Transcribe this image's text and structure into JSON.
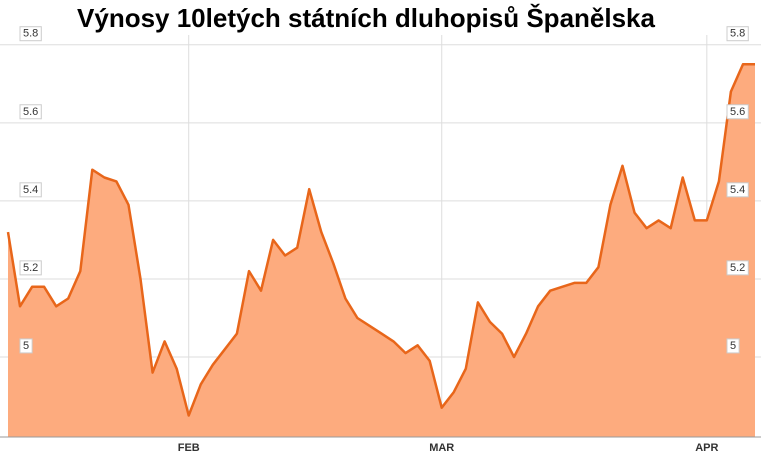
{
  "chart_data": {
    "type": "area",
    "title": "Výnosy 10letých státních dluhopisů Španělska",
    "categories": [
      null,
      null,
      null,
      null,
      null,
      null,
      null,
      null,
      null,
      null,
      null,
      null,
      null,
      null,
      null,
      "FEB",
      null,
      null,
      null,
      null,
      null,
      null,
      null,
      null,
      null,
      null,
      null,
      null,
      null,
      null,
      null,
      null,
      null,
      null,
      null,
      null,
      "MAR",
      null,
      null,
      null,
      null,
      null,
      null,
      null,
      null,
      null,
      null,
      null,
      null,
      null,
      null,
      null,
      null,
      null,
      null,
      null,
      null,
      null,
      "APR",
      null,
      null,
      null,
      null
    ],
    "values": [
      5.32,
      5.13,
      5.18,
      5.18,
      5.13,
      5.15,
      5.22,
      5.48,
      5.46,
      5.45,
      5.39,
      5.2,
      4.96,
      5.04,
      4.97,
      4.85,
      4.93,
      4.98,
      5.02,
      5.06,
      5.22,
      5.17,
      5.3,
      5.26,
      5.28,
      5.43,
      5.32,
      5.24,
      5.15,
      5.1,
      5.08,
      5.06,
      5.04,
      5.01,
      5.03,
      4.99,
      4.87,
      4.91,
      4.97,
      5.14,
      5.09,
      5.06,
      5.0,
      5.06,
      5.13,
      5.17,
      5.18,
      5.19,
      5.19,
      5.23,
      5.39,
      5.49,
      5.37,
      5.33,
      5.35,
      5.33,
      5.46,
      5.35,
      5.35,
      5.45,
      5.68,
      5.75,
      5.75
    ],
    "color": "#e8661a",
    "fill": "#fdab7e",
    "ylim": [
      4.795,
      5.82
    ],
    "yticks": [
      5,
      5.2,
      5.4,
      5.6,
      5.8
    ],
    "grid": true
  }
}
